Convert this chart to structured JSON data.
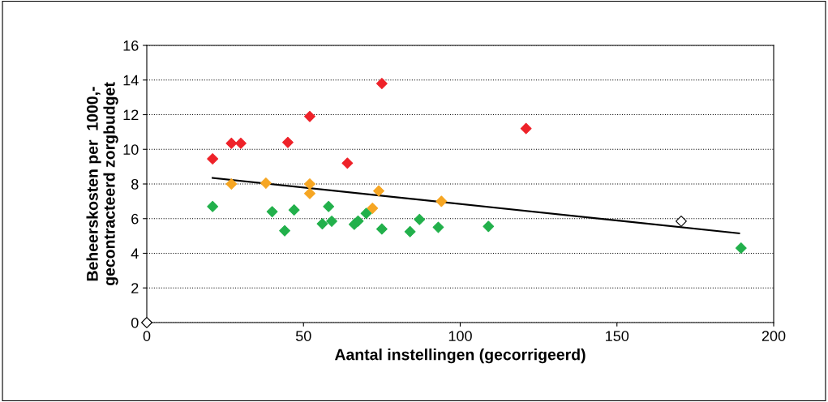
{
  "chart_data": {
    "type": "scatter",
    "xlabel": "Aantal instellingen (gecorrigeerd)",
    "ylabel": "Beheerskosten per  1000,-\ngecontracteerd zorgbudget",
    "xlim": [
      0,
      200
    ],
    "ylim": [
      0,
      16
    ],
    "xticks": [
      0,
      50,
      100,
      150,
      200
    ],
    "yticks": [
      0,
      2,
      4,
      6,
      8,
      10,
      12,
      14,
      16
    ],
    "grid": "y",
    "legend": false,
    "marker": "diamond",
    "series": [
      {
        "color": "#ee2229",
        "x": [
          21,
          27,
          30,
          45,
          52,
          64,
          75,
          121
        ],
        "values": [
          9.45,
          10.35,
          10.35,
          10.4,
          11.9,
          9.2,
          13.8,
          11.2
        ]
      },
      {
        "color": "#f6a623",
        "x": [
          27,
          38,
          52,
          52,
          74,
          72,
          94
        ],
        "values": [
          8.0,
          8.05,
          8.0,
          7.45,
          7.6,
          6.6,
          7.0
        ]
      },
      {
        "color": "#22b04b",
        "x": [
          21,
          40,
          44,
          47,
          56,
          58,
          59,
          66.2,
          67.4,
          70,
          75,
          84,
          87,
          93,
          109,
          189.6
        ],
        "values": [
          6.7,
          6.4,
          5.3,
          6.5,
          5.7,
          6.7,
          5.85,
          5.67,
          5.86,
          6.3,
          5.4,
          5.25,
          5.95,
          5.5,
          5.55,
          4.3
        ]
      },
      {
        "color": "#ffffff",
        "x": [
          170.5,
          0
        ],
        "values": [
          5.85,
          0
        ]
      },
      {
        "type": "line",
        "color": "#000000",
        "marker": "none",
        "line_style": "solid",
        "x": [
          21,
          189
        ],
        "values": [
          8.35,
          5.15
        ]
      }
    ]
  }
}
